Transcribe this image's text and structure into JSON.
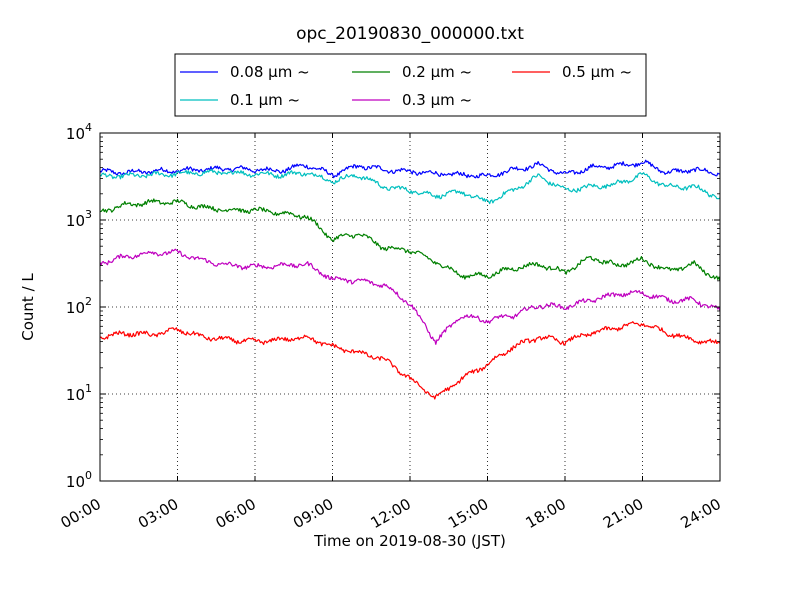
{
  "chart_data": {
    "type": "line",
    "title": "opc_20190830_000000.txt",
    "xlabel": "Time on 2019-08-30 (JST)",
    "ylabel": "Count / L",
    "x_ticks": [
      "00:00",
      "03:00",
      "06:00",
      "09:00",
      "12:00",
      "15:00",
      "18:00",
      "21:00",
      "24:00"
    ],
    "xlim_hours": [
      0,
      24
    ],
    "y_scale": "log",
    "ylim": [
      1,
      10000
    ],
    "y_ticks": [
      {
        "base": "10",
        "exp": "0"
      },
      {
        "base": "10",
        "exp": "1"
      },
      {
        "base": "10",
        "exp": "2"
      },
      {
        "base": "10",
        "exp": "3"
      },
      {
        "base": "10",
        "exp": "4"
      }
    ],
    "grid": true,
    "legend_position": "top-center",
    "series": [
      {
        "name": "0.08 μm ~",
        "color": "#0000ff",
        "x": [
          0,
          1,
          2,
          3,
          4,
          5,
          6,
          7,
          8,
          9,
          10,
          11,
          12,
          13,
          14,
          15,
          16,
          17,
          18,
          19,
          20,
          21,
          22,
          23,
          24
        ],
        "y": [
          3600,
          3500,
          3650,
          3700,
          3800,
          3900,
          3800,
          3700,
          4300,
          3300,
          4200,
          3800,
          3600,
          3400,
          3300,
          3200,
          3800,
          4300,
          3300,
          4000,
          4200,
          4600,
          3500,
          3800,
          3400
        ]
      },
      {
        "name": "0.1 μm ~",
        "color": "#00bfbf",
        "x": [
          0,
          1,
          2,
          3,
          4,
          5,
          6,
          7,
          8,
          9,
          10,
          11,
          12,
          13,
          14,
          15,
          16,
          17,
          18,
          19,
          20,
          21,
          22,
          23,
          24
        ],
        "y": [
          3200,
          3200,
          3300,
          3400,
          3500,
          3500,
          3400,
          3300,
          3500,
          2800,
          3300,
          2400,
          2200,
          1900,
          2100,
          1600,
          2200,
          3200,
          2200,
          2400,
          2600,
          3300,
          2400,
          2400,
          1800
        ]
      },
      {
        "name": "0.2 μm ~",
        "color": "#008000",
        "x": [
          0,
          1,
          2,
          3,
          4,
          5,
          6,
          7,
          8,
          9,
          10,
          11,
          12,
          13,
          14,
          15,
          16,
          17,
          18,
          19,
          20,
          21,
          22,
          23,
          24
        ],
        "y": [
          1250,
          1500,
          1600,
          1600,
          1400,
          1300,
          1300,
          1200,
          1100,
          600,
          700,
          480,
          450,
          330,
          230,
          230,
          280,
          310,
          250,
          370,
          300,
          350,
          260,
          310,
          200
        ]
      },
      {
        "name": "0.3 μm ~",
        "color": "#bf00bf",
        "x": [
          0,
          1,
          2,
          3,
          4,
          5,
          6,
          7,
          8,
          9,
          10,
          11,
          12,
          13,
          14,
          15,
          16,
          17,
          18,
          19,
          20,
          21,
          22,
          23,
          24
        ],
        "y": [
          320,
          380,
          420,
          420,
          340,
          300,
          290,
          300,
          310,
          210,
          200,
          180,
          110,
          40,
          80,
          70,
          80,
          105,
          100,
          120,
          140,
          145,
          120,
          120,
          90
        ]
      },
      {
        "name": "0.5 μm ~",
        "color": "#ff0000",
        "x": [
          0,
          1,
          2,
          3,
          4,
          5,
          6,
          7,
          8,
          9,
          10,
          11,
          12,
          13,
          14,
          15,
          16,
          17,
          18,
          19,
          20,
          21,
          22,
          23,
          24
        ],
        "y": [
          45,
          50,
          48,
          55,
          45,
          42,
          40,
          42,
          45,
          35,
          30,
          25,
          15,
          9,
          15,
          22,
          35,
          45,
          40,
          50,
          58,
          65,
          50,
          42,
          38
        ]
      }
    ]
  }
}
